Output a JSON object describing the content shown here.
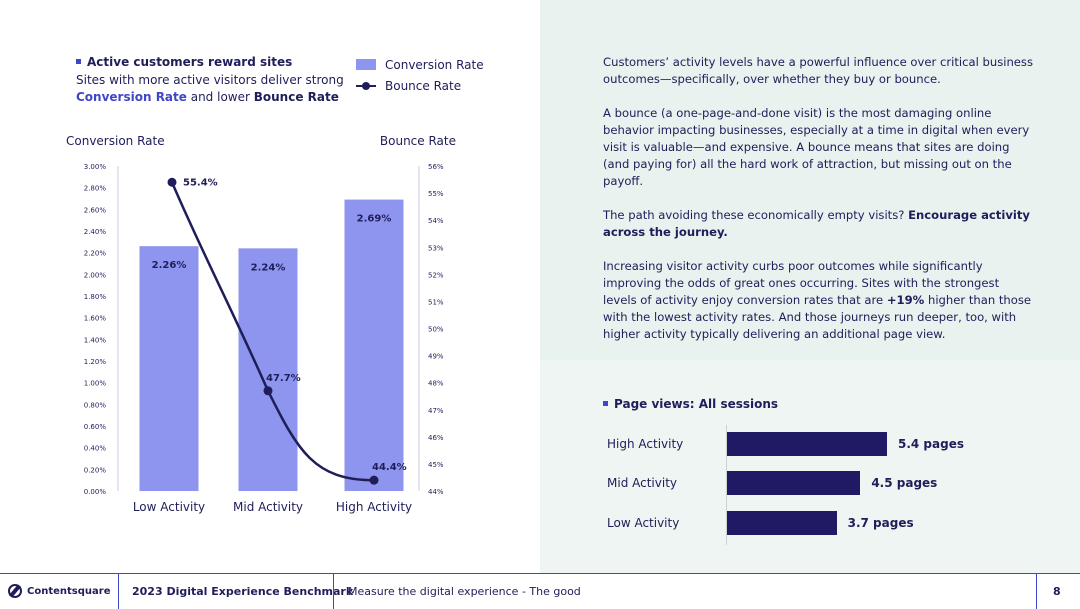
{
  "header": {
    "chart_title": "Active customers reward sites",
    "subtitle_part1": "Sites with more active visitors deliver strong ",
    "subtitle_hl1": "Conversion Rate",
    "subtitle_part2": " and lower ",
    "subtitle_hl2": "Bounce Rate"
  },
  "legend": {
    "bar_label": "Conversion Rate",
    "line_label": "Bounce Rate"
  },
  "chart_data": {
    "type": "bar",
    "categories": [
      "Low Activity",
      "Mid Activity",
      "High Activity"
    ],
    "series": [
      {
        "name": "Conversion Rate",
        "kind": "bar",
        "axis": "left",
        "values": [
          2.26,
          2.24,
          2.69
        ],
        "value_labels": [
          "2.26%",
          "2.24%",
          "2.69%"
        ]
      },
      {
        "name": "Bounce Rate",
        "kind": "line",
        "axis": "right",
        "values": [
          55.4,
          47.7,
          44.4
        ],
        "value_labels": [
          "55.4%",
          "47.7%",
          "44.4%"
        ]
      }
    ],
    "left_axis": {
      "label": "Conversion Rate",
      "ylim": [
        0,
        3.0
      ],
      "ticks": [
        "0.00%",
        "0.20%",
        "0.40%",
        "0.60%",
        "0.80%",
        "1.00%",
        "1.20%",
        "1.40%",
        "1.60%",
        "1.80%",
        "2.00%",
        "2.20%",
        "2.40%",
        "2.60%",
        "2.80%",
        "3.00%"
      ]
    },
    "right_axis": {
      "label": "Bounce Rate",
      "ylim": [
        44,
        56
      ],
      "ticks": [
        "44%",
        "45%",
        "46%",
        "47%",
        "48%",
        "49%",
        "50%",
        "51%",
        "52%",
        "53%",
        "54%",
        "55%",
        "56%"
      ]
    },
    "colors": {
      "bar": "#8e95ee",
      "line": "#1f1d5a",
      "axis": "#c9cce8",
      "text": "#1f1d5a"
    }
  },
  "body_text": {
    "p1": "Customers’ activity levels have a powerful influence over critical business outcomes—specifically, over whether they buy or bounce.",
    "p2": "A bounce (a one-page-and-done visit) is the most damaging online behavior impacting businesses, especially at a time in digital when every visit is valuable—and expensive. A bounce means that sites are doing (and paying for) all the hard work of attraction, but missing out on the payoff.",
    "p3_plain": "The path avoiding these economically empty visits? ",
    "p3_bold": "Encourage activity across the journey.",
    "p4_a": "Increasing visitor activity curbs poor outcomes while significantly improving the odds of great ones occurring. Sites with the strongest levels of activity enjoy conversion rates that are ",
    "p4_bold": "+19%",
    "p4_b": " higher than those with the lowest activity rates. And those journeys run deeper, too, with higher activity typically delivering an additional page view."
  },
  "page_views": {
    "title": "Page views: All sessions",
    "max": 5.4,
    "rows": [
      {
        "label": "High Activity",
        "value": 5.4,
        "value_label": "5.4 pages"
      },
      {
        "label": "Mid Activity",
        "value": 4.5,
        "value_label": "4.5 pages"
      },
      {
        "label": "Low Activity",
        "value": 3.7,
        "value_label": "3.7 pages"
      }
    ],
    "bar_color": "#1f1a63"
  },
  "footer": {
    "brand": "Contentsquare",
    "report": "2023 Digital Experience Benchmark",
    "section": "Measure the digital experience - The good",
    "page": "8"
  }
}
